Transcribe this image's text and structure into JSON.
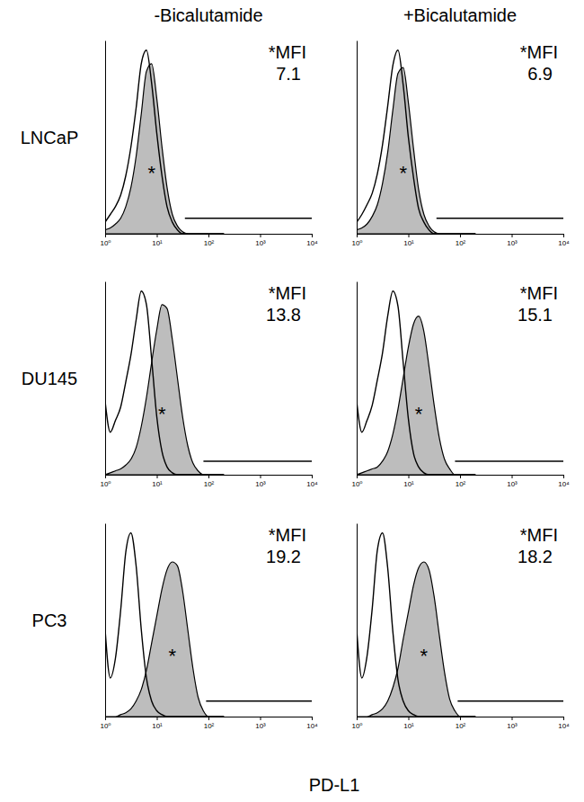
{
  "chart_data": [
    {
      "type": "area",
      "log": "x",
      "tick_labels": "x",
      "xlim": [
        1,
        10000
      ],
      "xticks": [
        {
          "value": 1,
          "label": "10⁰"
        },
        {
          "value": 10,
          "label": "10¹"
        },
        {
          "value": 100,
          "label": "10²"
        },
        {
          "value": 1000,
          "label": "10³"
        },
        {
          "value": 10000,
          "label": "10⁴"
        }
      ],
      "ylim": [
        0,
        100
      ],
      "x": [
        1,
        1.26,
        1.58,
        2,
        2.51,
        3.16,
        3.98,
        5.01,
        6.31,
        7.94,
        10,
        12.6,
        15.8,
        20,
        25.1,
        31.6,
        39.8,
        50.1,
        63.1,
        79.4,
        100,
        126,
        158,
        200
      ],
      "series": [
        {
          "type": "area",
          "color": "#bdbdbd",
          "values": [
            2,
            3,
            5,
            8,
            14,
            24,
            40,
            62,
            84,
            88,
            70,
            45,
            24,
            10,
            4,
            1,
            0,
            0,
            0,
            0,
            0,
            0,
            0,
            0
          ]
        },
        {
          "type": "line",
          "color": "#000000",
          "values": [
            6,
            10,
            14,
            20,
            30,
            45,
            65,
            88,
            95,
            78,
            52,
            30,
            14,
            6,
            2,
            0,
            0,
            0,
            0,
            0,
            0,
            0,
            0,
            0
          ]
        }
      ],
      "annotations": [
        "*MFI",
        "*"
      ],
      "mfi": 7.1,
      "gate": {
        "x": [
          35,
          10000
        ],
        "y": 8
      }
    },
    {
      "type": "area",
      "log": "x",
      "tick_labels": "x",
      "xlim": [
        1,
        10000
      ],
      "xticks": [
        {
          "value": 1,
          "label": "10⁰"
        },
        {
          "value": 10,
          "label": "10¹"
        },
        {
          "value": 100,
          "label": "10²"
        },
        {
          "value": 1000,
          "label": "10³"
        },
        {
          "value": 10000,
          "label": "10⁴"
        }
      ],
      "ylim": [
        0,
        100
      ],
      "x": [
        1,
        1.26,
        1.58,
        2,
        2.51,
        3.16,
        3.98,
        5.01,
        6.31,
        7.94,
        10,
        12.6,
        15.8,
        20,
        25.1,
        31.6,
        39.8,
        50.1,
        63.1,
        79.4,
        100,
        126,
        158,
        200
      ],
      "series": [
        {
          "type": "area",
          "color": "#bdbdbd",
          "values": [
            2,
            3,
            5,
            9,
            15,
            26,
            42,
            64,
            83,
            86,
            68,
            44,
            23,
            10,
            4,
            1,
            0,
            0,
            0,
            0,
            0,
            0,
            0,
            0
          ]
        },
        {
          "type": "line",
          "color": "#000000",
          "values": [
            6,
            10,
            15,
            21,
            31,
            46,
            66,
            87,
            95,
            77,
            50,
            29,
            13,
            6,
            2,
            0,
            0,
            0,
            0,
            0,
            0,
            0,
            0,
            0
          ]
        }
      ],
      "annotations": [
        "*MFI",
        "*"
      ],
      "mfi": 6.9,
      "gate": {
        "x": [
          35,
          10000
        ],
        "y": 8
      }
    },
    {
      "type": "area",
      "log": "x",
      "tick_labels": "x",
      "xlim": [
        1,
        10000
      ],
      "xticks": [
        {
          "value": 1,
          "label": "10⁰"
        },
        {
          "value": 10,
          "label": "10¹"
        },
        {
          "value": 100,
          "label": "10²"
        },
        {
          "value": 1000,
          "label": "10³"
        },
        {
          "value": 10000,
          "label": "10⁴"
        }
      ],
      "ylim": [
        0,
        100
      ],
      "x": [
        1,
        1.26,
        1.58,
        2,
        2.51,
        3.16,
        3.98,
        5.01,
        6.31,
        7.94,
        10,
        12.6,
        15.8,
        20,
        25.1,
        31.6,
        39.8,
        50.1,
        63.1,
        79.4,
        100,
        126,
        158,
        200
      ],
      "series": [
        {
          "type": "area",
          "color": "#bdbdbd",
          "values": [
            0,
            1,
            2,
            3,
            5,
            8,
            14,
            25,
            40,
            58,
            75,
            88,
            86,
            70,
            50,
            30,
            15,
            6,
            2,
            0,
            0,
            0,
            0,
            0
          ]
        },
        {
          "type": "line",
          "color": "#000000",
          "values": [
            38,
            22,
            28,
            35,
            48,
            62,
            80,
            95,
            88,
            60,
            30,
            12,
            4,
            1,
            0,
            0,
            0,
            0,
            0,
            0,
            0,
            0,
            0,
            0
          ]
        }
      ],
      "annotations": [
        "*MFI",
        "*"
      ],
      "mfi": 13.8,
      "gate": {
        "x": [
          80,
          10000
        ],
        "y": 7
      }
    },
    {
      "type": "area",
      "log": "x",
      "tick_labels": "x",
      "xlim": [
        1,
        10000
      ],
      "xticks": [
        {
          "value": 1,
          "label": "10⁰"
        },
        {
          "value": 10,
          "label": "10¹"
        },
        {
          "value": 100,
          "label": "10²"
        },
        {
          "value": 1000,
          "label": "10³"
        },
        {
          "value": 10000,
          "label": "10⁴"
        }
      ],
      "ylim": [
        0,
        100
      ],
      "x": [
        1,
        1.26,
        1.58,
        2,
        2.51,
        3.16,
        3.98,
        5.01,
        6.31,
        7.94,
        10,
        12.6,
        15.8,
        20,
        25.1,
        31.6,
        39.8,
        50.1,
        63.1,
        79.4,
        100,
        126,
        158,
        200
      ],
      "series": [
        {
          "type": "area",
          "color": "#bdbdbd",
          "values": [
            0,
            1,
            2,
            3,
            4,
            7,
            12,
            21,
            34,
            50,
            66,
            78,
            82,
            74,
            56,
            36,
            19,
            8,
            3,
            0,
            0,
            0,
            0,
            0
          ]
        },
        {
          "type": "line",
          "color": "#000000",
          "values": [
            38,
            22,
            28,
            36,
            49,
            63,
            82,
            95,
            87,
            58,
            29,
            11,
            4,
            1,
            0,
            0,
            0,
            0,
            0,
            0,
            0,
            0,
            0,
            0
          ]
        }
      ],
      "annotations": [
        "*MFI",
        "*"
      ],
      "mfi": 15.1,
      "gate": {
        "x": [
          80,
          10000
        ],
        "y": 7
      }
    },
    {
      "type": "area",
      "log": "x",
      "tick_labels": "x",
      "xlim": [
        1,
        10000
      ],
      "xticks": [
        {
          "value": 1,
          "label": "10⁰"
        },
        {
          "value": 10,
          "label": "10¹"
        },
        {
          "value": 100,
          "label": "10²"
        },
        {
          "value": 1000,
          "label": "10³"
        },
        {
          "value": 10000,
          "label": "10⁴"
        }
      ],
      "ylim": [
        0,
        100
      ],
      "x": [
        1,
        1.26,
        1.58,
        2,
        2.51,
        3.16,
        3.98,
        5.01,
        6.31,
        7.94,
        10,
        12.6,
        15.8,
        20,
        25.1,
        31.6,
        39.8,
        50.1,
        63.1,
        79.4,
        100,
        126,
        158,
        200
      ],
      "series": [
        {
          "type": "area",
          "color": "#bdbdbd",
          "values": [
            0,
            0,
            0,
            1,
            2,
            4,
            8,
            14,
            24,
            38,
            52,
            66,
            76,
            80,
            78,
            65,
            45,
            25,
            10,
            3,
            0,
            0,
            0,
            0
          ]
        },
        {
          "type": "line",
          "color": "#000000",
          "values": [
            45,
            20,
            30,
            55,
            85,
            95,
            78,
            45,
            20,
            8,
            3,
            1,
            0,
            0,
            0,
            0,
            0,
            0,
            0,
            0,
            0,
            0,
            0,
            0
          ]
        }
      ],
      "annotations": [
        "*MFI",
        "*"
      ],
      "mfi": 19.2,
      "gate": {
        "x": [
          90,
          10000
        ],
        "y": 8
      }
    },
    {
      "type": "area",
      "log": "x",
      "tick_labels": "x",
      "xlim": [
        1,
        10000
      ],
      "xticks": [
        {
          "value": 1,
          "label": "10⁰"
        },
        {
          "value": 10,
          "label": "10¹"
        },
        {
          "value": 100,
          "label": "10²"
        },
        {
          "value": 1000,
          "label": "10³"
        },
        {
          "value": 10000,
          "label": "10⁴"
        }
      ],
      "ylim": [
        0,
        100
      ],
      "x": [
        1,
        1.26,
        1.58,
        2,
        2.51,
        3.16,
        3.98,
        5.01,
        6.31,
        7.94,
        10,
        12.6,
        15.8,
        20,
        25.1,
        31.6,
        39.8,
        50.1,
        63.1,
        79.4,
        100,
        126,
        158,
        200
      ],
      "series": [
        {
          "type": "area",
          "color": "#bdbdbd",
          "values": [
            0,
            0,
            0,
            1,
            2,
            4,
            8,
            15,
            25,
            40,
            54,
            68,
            77,
            80,
            76,
            62,
            42,
            23,
            9,
            3,
            0,
            0,
            0,
            0
          ]
        },
        {
          "type": "line",
          "color": "#000000",
          "values": [
            45,
            20,
            31,
            56,
            86,
            95,
            77,
            44,
            19,
            8,
            3,
            1,
            0,
            0,
            0,
            0,
            0,
            0,
            0,
            0,
            0,
            0,
            0,
            0
          ]
        }
      ],
      "annotations": [
        "*MFI",
        "*"
      ],
      "mfi": 18.2,
      "gate": {
        "x": [
          90,
          10000
        ],
        "y": 8
      }
    }
  ],
  "column_titles": [
    "-Bicalutamide",
    "+Bicalutamide"
  ],
  "row_labels": [
    "LNCaP",
    "DU145",
    "PC3"
  ],
  "x_label": "PD-L1"
}
